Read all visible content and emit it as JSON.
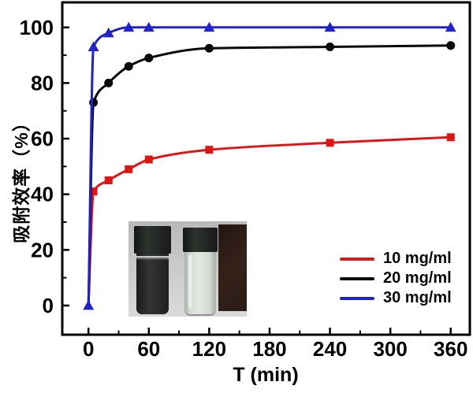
{
  "figure": {
    "x_axis_label": "T (min)",
    "y_axis_label": "吸附效率（%）"
  },
  "chart_data": {
    "type": "line",
    "title": "",
    "xlabel": "T (min)",
    "ylabel": "吸附效率（%）",
    "x": [
      0,
      5,
      20,
      40,
      60,
      120,
      240,
      360
    ],
    "series": [
      {
        "name": "10 mg/ml",
        "color": "#e01515",
        "marker": "square",
        "marker_at_origin": false,
        "values": [
          0,
          41,
          45,
          49,
          52.5,
          56,
          58.5,
          60.5
        ]
      },
      {
        "name": "20 mg/ml",
        "color": "#0a0a0a",
        "marker": "circle",
        "marker_at_origin": false,
        "values": [
          0,
          73,
          80,
          86,
          89,
          92.5,
          93,
          93.5
        ]
      },
      {
        "name": "30 mg/ml",
        "color": "#2222cc",
        "marker": "triangle",
        "marker_at_origin": true,
        "values": [
          0,
          93,
          98,
          100,
          100,
          100,
          100,
          100
        ]
      }
    ],
    "x_ticks": [
      0,
      60,
      120,
      180,
      240,
      300,
      360
    ],
    "y_ticks": [
      0,
      20,
      40,
      60,
      80,
      100
    ],
    "xlim": [
      -26,
      379
    ],
    "ylim": [
      -10.5,
      109
    ],
    "grid": false,
    "legend_position": "lower right"
  },
  "inset_colors": {
    "background_top": "#b8b8b8",
    "background_bottom": "#dadada",
    "vial_cap": "#1d201d",
    "dark_liquid": "#262626",
    "clear_liquid": "#d6dcd6",
    "magnet_block": "#2b1b15"
  }
}
